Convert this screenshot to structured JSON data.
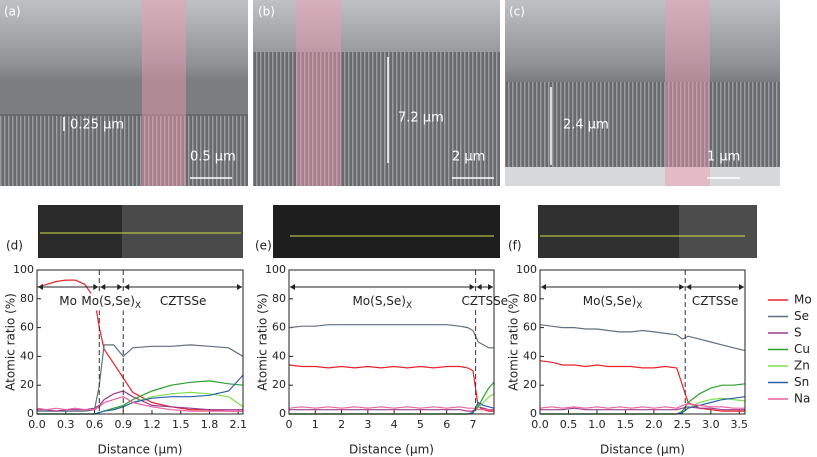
{
  "images": {
    "a": {
      "label": "(a)",
      "thickness": "0.25 µm",
      "scale": "0.5 µm"
    },
    "b": {
      "label": "(b)",
      "thickness": "7.2 µm",
      "scale": "2 µm"
    },
    "c": {
      "label": "(c)",
      "thickness": "2.4 µm",
      "scale": "1 µm"
    },
    "d": {
      "label": "(d)"
    },
    "e": {
      "label": "(e)"
    },
    "f": {
      "label": "(f)"
    }
  },
  "legend": [
    {
      "name": "Mo",
      "color": "#e8232a"
    },
    {
      "name": "Se",
      "color": "#5f7080"
    },
    {
      "name": "S",
      "color": "#9c3b8f"
    },
    {
      "name": "Cu",
      "color": "#2ca02c"
    },
    {
      "name": "Zn",
      "color": "#7ee04a"
    },
    {
      "name": "Sn",
      "color": "#2b5fae"
    },
    {
      "name": "Na",
      "color": "#ee5fa0"
    }
  ],
  "chart_data": [
    {
      "type": "line",
      "x_label": "Distance (µm)",
      "y_label": "Atomic ratio (%)",
      "xlim": [
        0,
        2.15
      ],
      "ylim": [
        0,
        100
      ],
      "xticks": [
        {
          "value": 0,
          "label": "0.0"
        },
        0.3,
        0.6,
        0.9,
        1.2,
        1.5,
        1.8,
        2.1
      ],
      "yticks": [
        0,
        20,
        40,
        60,
        80,
        100
      ],
      "boundaries": [
        0.65,
        0.9
      ],
      "regions": [
        {
          "label": "Mo",
          "from": 0,
          "to": 0.65
        },
        {
          "label": "Mo(S,Se)",
          "subscript": "X",
          "from": 0.65,
          "to": 0.9
        },
        {
          "label": "CZTSSe",
          "from": 0.9,
          "to": 2.15
        }
      ],
      "x": [
        0,
        0.1,
        0.2,
        0.3,
        0.4,
        0.5,
        0.6,
        0.65,
        0.7,
        0.8,
        0.9,
        1.0,
        1.2,
        1.4,
        1.6,
        1.8,
        2.0,
        2.15
      ],
      "series": [
        {
          "values": [
            88,
            90,
            92,
            93,
            93,
            90,
            80,
            60,
            45,
            35,
            25,
            15,
            8,
            5,
            3,
            3,
            2,
            2
          ]
        },
        {
          "values": [
            2,
            2,
            2,
            2,
            2,
            2,
            3,
            20,
            48,
            48,
            40,
            46,
            47,
            47,
            48,
            47,
            46,
            40
          ]
        },
        {
          "values": [
            3,
            3,
            2,
            3,
            3,
            3,
            4,
            6,
            10,
            14,
            16,
            12,
            6,
            5,
            4,
            3,
            3,
            3
          ]
        },
        {
          "values": [
            0,
            0,
            0,
            0,
            0,
            0,
            0,
            1,
            2,
            4,
            6,
            10,
            16,
            20,
            22,
            23,
            21,
            20
          ]
        },
        {
          "values": [
            0,
            0,
            0,
            0,
            0,
            0,
            0,
            1,
            2,
            3,
            5,
            8,
            12,
            14,
            15,
            14,
            12,
            5
          ]
        },
        {
          "values": [
            0,
            0,
            0,
            0,
            0,
            0,
            0,
            1,
            2,
            3,
            5,
            8,
            11,
            12,
            12,
            13,
            16,
            27
          ]
        },
        {
          "values": [
            4,
            3,
            4,
            3,
            4,
            3,
            3,
            5,
            8,
            10,
            12,
            8,
            5,
            3,
            2,
            2,
            2,
            2
          ]
        }
      ]
    },
    {
      "type": "line",
      "x_label": "Distance (µm)",
      "y_label": "Atomic ratio (%)",
      "xlim": [
        0,
        7.8
      ],
      "ylim": [
        0,
        100
      ],
      "xticks": [
        0,
        1,
        2,
        3,
        4,
        5,
        6,
        7
      ],
      "yticks": [
        0,
        20,
        40,
        60,
        80,
        100
      ],
      "boundaries": [
        7.1
      ],
      "regions": [
        {
          "label": "Mo(S,Se)",
          "subscript": "X",
          "from": 0,
          "to": 7.1
        },
        {
          "label": "CZTSSe",
          "from": 7.1,
          "to": 7.8
        }
      ],
      "x": [
        0,
        0.5,
        1,
        1.5,
        2,
        2.5,
        3,
        3.5,
        4,
        4.5,
        5,
        5.5,
        6,
        6.5,
        6.8,
        7.0,
        7.2,
        7.4,
        7.6,
        7.8
      ],
      "series": [
        {
          "values": [
            34,
            33,
            33,
            32,
            33,
            32,
            33,
            32,
            33,
            32,
            33,
            32,
            33,
            33,
            32,
            30,
            5,
            3,
            2,
            2
          ]
        },
        {
          "values": [
            60,
            61,
            61,
            62,
            62,
            62,
            62,
            62,
            62,
            62,
            62,
            62,
            62,
            61,
            60,
            58,
            50,
            48,
            46,
            46
          ]
        },
        {
          "values": [
            3,
            3,
            3,
            3,
            3,
            3,
            3,
            3,
            3,
            3,
            3,
            3,
            3,
            3,
            2,
            2,
            5,
            4,
            3,
            3
          ]
        },
        {
          "values": [
            0,
            0,
            0,
            0,
            0,
            0,
            0,
            0,
            0,
            0,
            0,
            0,
            0,
            0,
            0,
            1,
            5,
            12,
            18,
            22
          ]
        },
        {
          "values": [
            0,
            0,
            0,
            0,
            0,
            0,
            0,
            0,
            0,
            0,
            0,
            0,
            0,
            0,
            0,
            1,
            4,
            8,
            12,
            14
          ]
        },
        {
          "values": [
            0,
            0,
            0,
            0,
            0,
            0,
            0,
            0,
            0,
            0,
            0,
            0,
            0,
            0,
            0,
            1,
            8,
            6,
            5,
            4
          ]
        },
        {
          "values": [
            4,
            5,
            4,
            5,
            4,
            5,
            4,
            5,
            4,
            5,
            4,
            5,
            4,
            5,
            4,
            4,
            3,
            3,
            3,
            3
          ]
        }
      ]
    },
    {
      "type": "line",
      "x_label": "Distance (µm)",
      "y_label": "Atomic ratio (%)",
      "xlim": [
        0,
        3.6
      ],
      "ylim": [
        0,
        100
      ],
      "xticks": [
        {
          "value": 0,
          "label": "0.0"
        },
        0.5,
        {
          "value": 1,
          "label": "1.0"
        },
        1.5,
        {
          "value": 2,
          "label": "2.0"
        },
        2.5,
        {
          "value": 3,
          "label": "3.0"
        },
        3.5
      ],
      "yticks": [
        0,
        20,
        40,
        60,
        80,
        100
      ],
      "boundaries": [
        2.55
      ],
      "regions": [
        {
          "label": "Mo(S,Se)",
          "subscript": "X",
          "from": 0,
          "to": 2.55
        },
        {
          "label": "CZTSSe",
          "from": 2.55,
          "to": 3.6
        }
      ],
      "x": [
        0,
        0.2,
        0.4,
        0.6,
        0.8,
        1.0,
        1.2,
        1.4,
        1.6,
        1.8,
        2.0,
        2.2,
        2.4,
        2.5,
        2.6,
        2.8,
        3.0,
        3.2,
        3.4,
        3.6
      ],
      "series": [
        {
          "values": [
            37,
            36,
            34,
            34,
            33,
            34,
            33,
            33,
            33,
            32,
            32,
            33,
            32,
            20,
            8,
            4,
            3,
            2,
            2,
            2
          ]
        },
        {
          "values": [
            62,
            61,
            60,
            60,
            59,
            59,
            58,
            57,
            57,
            58,
            57,
            56,
            55,
            52,
            54,
            52,
            50,
            48,
            46,
            44
          ]
        },
        {
          "values": [
            3,
            3,
            3,
            4,
            3,
            3,
            3,
            3,
            3,
            3,
            3,
            3,
            3,
            4,
            5,
            4,
            4,
            3,
            3,
            3
          ]
        },
        {
          "values": [
            0,
            0,
            0,
            0,
            0,
            0,
            0,
            0,
            0,
            0,
            0,
            0,
            0,
            2,
            8,
            14,
            18,
            20,
            20,
            21
          ]
        },
        {
          "values": [
            0,
            0,
            0,
            0,
            0,
            0,
            0,
            0,
            0,
            0,
            0,
            0,
            0,
            1,
            4,
            8,
            10,
            11,
            10,
            9
          ]
        },
        {
          "values": [
            0,
            0,
            0,
            0,
            0,
            0,
            0,
            0,
            0,
            0,
            0,
            0,
            0,
            1,
            4,
            6,
            8,
            10,
            11,
            12
          ]
        },
        {
          "values": [
            4,
            5,
            4,
            5,
            4,
            5,
            4,
            5,
            4,
            5,
            4,
            5,
            4,
            6,
            7,
            6,
            5,
            5,
            4,
            4
          ]
        }
      ]
    }
  ]
}
